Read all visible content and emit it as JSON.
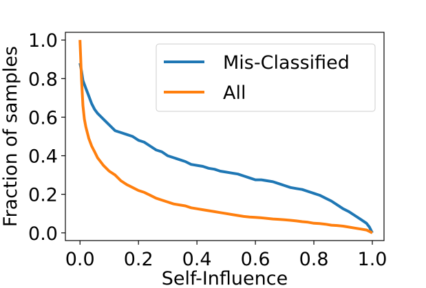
{
  "chart_data": {
    "type": "line",
    "title": "",
    "xlabel": "Self-Influence",
    "ylabel": "Fraction of samples",
    "xlim": [
      -0.05,
      1.04
    ],
    "ylim": [
      -0.04,
      1.04
    ],
    "xticks": [
      0.0,
      0.2,
      0.4,
      0.6,
      0.8,
      1.0
    ],
    "xtick_labels": [
      "0.0",
      "0.2",
      "0.4",
      "0.6",
      "0.8",
      "1.0"
    ],
    "yticks": [
      0.0,
      0.2,
      0.4,
      0.6,
      0.8,
      1.0
    ],
    "ytick_labels": [
      "0.0",
      "0.2",
      "0.4",
      "0.6",
      "0.8",
      "1.0"
    ],
    "grid": false,
    "legend_position": "top-right",
    "series": [
      {
        "name": "Mis-Classified",
        "color": "#1f77b4",
        "x": [
          0.0,
          0.005,
          0.01,
          0.02,
          0.03,
          0.04,
          0.05,
          0.06,
          0.08,
          0.1,
          0.12,
          0.14,
          0.16,
          0.18,
          0.2,
          0.22,
          0.24,
          0.26,
          0.28,
          0.3,
          0.32,
          0.34,
          0.36,
          0.38,
          0.4,
          0.42,
          0.44,
          0.46,
          0.48,
          0.5,
          0.52,
          0.54,
          0.56,
          0.58,
          0.6,
          0.62,
          0.64,
          0.66,
          0.68,
          0.7,
          0.72,
          0.74,
          0.76,
          0.78,
          0.8,
          0.82,
          0.84,
          0.86,
          0.88,
          0.9,
          0.92,
          0.94,
          0.96,
          0.98,
          0.99,
          1.0
        ],
        "y": [
          0.88,
          0.84,
          0.79,
          0.75,
          0.71,
          0.67,
          0.64,
          0.62,
          0.59,
          0.56,
          0.53,
          0.52,
          0.51,
          0.5,
          0.48,
          0.47,
          0.45,
          0.43,
          0.42,
          0.4,
          0.39,
          0.38,
          0.37,
          0.355,
          0.35,
          0.345,
          0.335,
          0.33,
          0.32,
          0.315,
          0.31,
          0.305,
          0.295,
          0.285,
          0.275,
          0.275,
          0.27,
          0.265,
          0.255,
          0.245,
          0.235,
          0.23,
          0.225,
          0.215,
          0.205,
          0.195,
          0.18,
          0.165,
          0.145,
          0.125,
          0.11,
          0.09,
          0.07,
          0.05,
          0.03,
          0.0
        ]
      },
      {
        "name": "All",
        "color": "#ff7f0e",
        "x": [
          0.0,
          0.002,
          0.005,
          0.01,
          0.015,
          0.02,
          0.03,
          0.04,
          0.05,
          0.06,
          0.08,
          0.1,
          0.12,
          0.14,
          0.16,
          0.18,
          0.2,
          0.22,
          0.24,
          0.26,
          0.28,
          0.3,
          0.32,
          0.34,
          0.36,
          0.38,
          0.4,
          0.42,
          0.44,
          0.46,
          0.48,
          0.5,
          0.52,
          0.54,
          0.56,
          0.58,
          0.6,
          0.62,
          0.64,
          0.66,
          0.68,
          0.7,
          0.72,
          0.74,
          0.76,
          0.78,
          0.8,
          0.82,
          0.84,
          0.86,
          0.88,
          0.9,
          0.92,
          0.94,
          0.96,
          0.98,
          1.0
        ],
        "y": [
          1.0,
          0.92,
          0.8,
          0.66,
          0.59,
          0.55,
          0.49,
          0.45,
          0.42,
          0.39,
          0.35,
          0.32,
          0.3,
          0.27,
          0.25,
          0.235,
          0.22,
          0.21,
          0.195,
          0.18,
          0.17,
          0.16,
          0.15,
          0.145,
          0.14,
          0.13,
          0.125,
          0.12,
          0.115,
          0.11,
          0.105,
          0.1,
          0.095,
          0.09,
          0.085,
          0.082,
          0.08,
          0.078,
          0.075,
          0.072,
          0.07,
          0.068,
          0.065,
          0.062,
          0.058,
          0.055,
          0.05,
          0.048,
          0.045,
          0.04,
          0.038,
          0.035,
          0.03,
          0.025,
          0.02,
          0.015,
          0.0
        ]
      }
    ]
  }
}
